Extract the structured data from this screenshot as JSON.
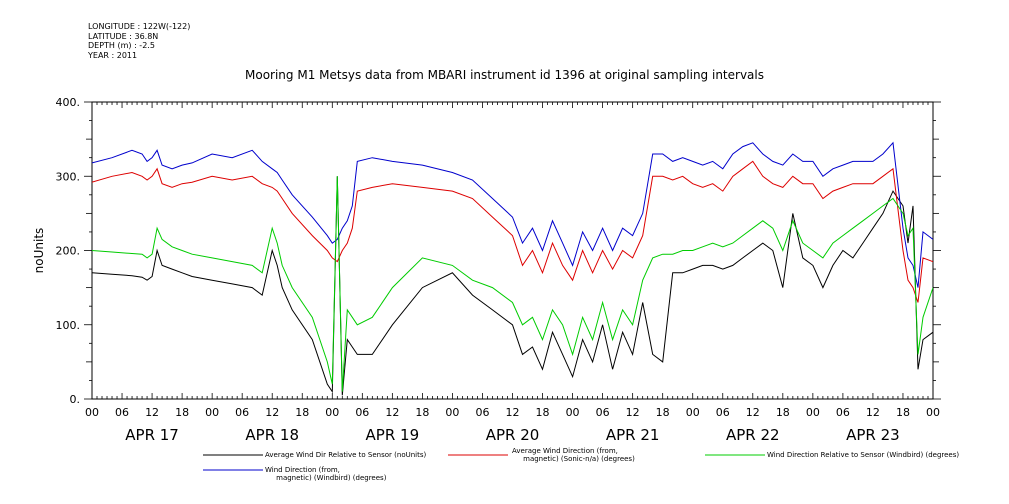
{
  "meta": {
    "longitude": "LONGITUDE : 122W(-122)",
    "latitude": "LATITUDE : 36.8N",
    "depth": "DEPTH (m) : -2.5",
    "year": "YEAR : 2011"
  },
  "title": "Mooring M1 Metsys data from MBARI instrument id 1396 at original sampling intervals",
  "chart_data": {
    "type": "line",
    "title": "Mooring M1 Metsys data from MBARI instrument id 1396 at original sampling intervals",
    "ylabel": "noUnits",
    "xlabel": "",
    "ylim": [
      0,
      400
    ],
    "yticks": [
      "0.",
      "100.",
      "200.",
      "300.",
      "400."
    ],
    "xlim_hours": [
      0,
      168
    ],
    "hour_ticks": [
      "00",
      "06",
      "12",
      "18",
      "00",
      "06",
      "12",
      "18",
      "00",
      "06",
      "12",
      "18",
      "00",
      "06",
      "12",
      "18",
      "00",
      "06",
      "12",
      "18",
      "00",
      "06",
      "12",
      "18",
      "00",
      "06",
      "12",
      "18",
      "00"
    ],
    "day_labels": [
      "APR 17",
      "APR 18",
      "APR 19",
      "APR 20",
      "APR 21",
      "APR 22",
      "APR 23"
    ],
    "grid": false,
    "legend_position": "bottom",
    "series": [
      {
        "name": "Average Wind Dir Relative to Sensor (noUnits)",
        "color": "#000000",
        "x": [
          0,
          4,
          8,
          10,
          11,
          12,
          13,
          14,
          16,
          18,
          20,
          24,
          28,
          32,
          34,
          36,
          37,
          38,
          40,
          44,
          47,
          48,
          49,
          50,
          51,
          52,
          53,
          56,
          60,
          66,
          72,
          76,
          80,
          84,
          86,
          88,
          90,
          92,
          94,
          96,
          98,
          100,
          102,
          104,
          106,
          108,
          110,
          112,
          114,
          116,
          118,
          120,
          122,
          124,
          126,
          128,
          130,
          132,
          134,
          136,
          138,
          140,
          142,
          144,
          146,
          148,
          150,
          152,
          154,
          156,
          158,
          160,
          162,
          163,
          164,
          165,
          166,
          168
        ],
        "values": [
          170,
          168,
          166,
          164,
          160,
          165,
          200,
          180,
          175,
          170,
          165,
          160,
          155,
          150,
          140,
          200,
          180,
          150,
          120,
          80,
          20,
          10,
          300,
          5,
          80,
          70,
          60,
          60,
          100,
          150,
          170,
          140,
          120,
          100,
          60,
          70,
          40,
          90,
          60,
          30,
          80,
          50,
          100,
          40,
          90,
          60,
          130,
          60,
          50,
          170,
          170,
          175,
          180,
          180,
          175,
          180,
          190,
          200,
          210,
          200,
          150,
          250,
          190,
          180,
          150,
          180,
          200,
          190,
          210,
          230,
          250,
          280,
          260,
          210,
          260,
          40,
          80,
          90
        ]
      },
      {
        "name": "Average Wind Direction (from, magnetic) (Sonic-n/a) (degrees)",
        "color": "#dd0000",
        "x": [
          0,
          4,
          8,
          10,
          11,
          12,
          13,
          14,
          16,
          18,
          20,
          24,
          28,
          32,
          34,
          36,
          37,
          38,
          40,
          44,
          47,
          48,
          49,
          50,
          51,
          52,
          53,
          56,
          60,
          66,
          72,
          76,
          80,
          84,
          86,
          88,
          90,
          92,
          94,
          96,
          98,
          100,
          102,
          104,
          106,
          108,
          110,
          112,
          114,
          116,
          118,
          120,
          122,
          124,
          126,
          128,
          130,
          132,
          134,
          136,
          138,
          140,
          142,
          144,
          146,
          148,
          150,
          152,
          154,
          156,
          158,
          160,
          162,
          163,
          164,
          165,
          166,
          168
        ],
        "values": [
          292,
          300,
          305,
          300,
          295,
          300,
          310,
          290,
          285,
          290,
          292,
          300,
          295,
          300,
          290,
          285,
          280,
          270,
          250,
          220,
          200,
          190,
          185,
          200,
          210,
          230,
          280,
          285,
          290,
          285,
          280,
          270,
          245,
          220,
          180,
          200,
          170,
          210,
          180,
          160,
          200,
          170,
          200,
          175,
          200,
          190,
          220,
          300,
          300,
          295,
          300,
          290,
          285,
          290,
          280,
          300,
          310,
          320,
          300,
          290,
          285,
          300,
          290,
          290,
          270,
          280,
          285,
          290,
          290,
          290,
          300,
          310,
          200,
          160,
          150,
          130,
          190,
          185
        ]
      },
      {
        "name": "Wind Direction Relative to Sensor (Windbird) (degrees)",
        "color": "#00cc00",
        "x": [
          0,
          4,
          8,
          10,
          11,
          12,
          13,
          14,
          16,
          18,
          20,
          24,
          28,
          32,
          34,
          36,
          37,
          38,
          40,
          44,
          47,
          48,
          49,
          50,
          51,
          52,
          53,
          56,
          60,
          66,
          72,
          76,
          80,
          84,
          86,
          88,
          90,
          92,
          94,
          96,
          98,
          100,
          102,
          104,
          106,
          108,
          110,
          112,
          114,
          116,
          118,
          120,
          122,
          124,
          126,
          128,
          130,
          132,
          134,
          136,
          138,
          140,
          142,
          144,
          146,
          148,
          150,
          152,
          154,
          156,
          158,
          160,
          162,
          163,
          164,
          165,
          166,
          168
        ],
        "values": [
          200,
          198,
          196,
          195,
          190,
          195,
          230,
          215,
          205,
          200,
          195,
          190,
          185,
          180,
          170,
          230,
          210,
          180,
          150,
          110,
          50,
          20,
          300,
          10,
          120,
          110,
          100,
          110,
          150,
          190,
          180,
          160,
          150,
          130,
          100,
          110,
          80,
          120,
          100,
          60,
          110,
          80,
          130,
          80,
          120,
          100,
          160,
          190,
          195,
          195,
          200,
          200,
          205,
          210,
          205,
          210,
          220,
          230,
          240,
          230,
          200,
          240,
          210,
          200,
          190,
          210,
          220,
          230,
          240,
          250,
          260,
          270,
          250,
          220,
          230,
          60,
          110,
          150
        ]
      },
      {
        "name": "Wind Direction (from, magnetic) (Windbird) (degrees)",
        "color": "#0000cc",
        "x": [
          0,
          4,
          8,
          10,
          11,
          12,
          13,
          14,
          16,
          18,
          20,
          24,
          28,
          32,
          34,
          36,
          37,
          38,
          40,
          44,
          47,
          48,
          49,
          50,
          51,
          52,
          53,
          56,
          60,
          66,
          72,
          76,
          80,
          84,
          86,
          88,
          90,
          92,
          94,
          96,
          98,
          100,
          102,
          104,
          106,
          108,
          110,
          112,
          114,
          116,
          118,
          120,
          122,
          124,
          126,
          128,
          130,
          132,
          134,
          136,
          138,
          140,
          142,
          144,
          146,
          148,
          150,
          152,
          154,
          156,
          158,
          160,
          162,
          163,
          164,
          165,
          166,
          168
        ],
        "values": [
          318,
          325,
          335,
          330,
          320,
          325,
          335,
          315,
          310,
          315,
          318,
          330,
          325,
          335,
          320,
          310,
          305,
          295,
          275,
          245,
          220,
          210,
          215,
          230,
          240,
          260,
          320,
          325,
          320,
          315,
          305,
          295,
          270,
          245,
          210,
          230,
          200,
          240,
          210,
          180,
          225,
          200,
          230,
          200,
          230,
          220,
          250,
          330,
          330,
          320,
          325,
          320,
          315,
          320,
          310,
          330,
          340,
          345,
          330,
          320,
          315,
          330,
          320,
          320,
          300,
          310,
          315,
          320,
          320,
          320,
          330,
          345,
          230,
          190,
          180,
          150,
          225,
          215
        ]
      }
    ]
  },
  "legend": [
    {
      "text": "Average Wind Dir Relative to Sensor (noUnits)",
      "color": "#000000"
    },
    {
      "text": "Average Wind Direction (from,\n     magnetic) (Sonic-n/a) (degrees)",
      "color": "#dd0000"
    },
    {
      "text": "Wind Direction Relative to Sensor (Windbird) (degrees)",
      "color": "#00cc00"
    },
    {
      "text": "Wind Direction (from,\n     magnetic) (Windbird) (degrees)",
      "color": "#0000cc"
    }
  ]
}
